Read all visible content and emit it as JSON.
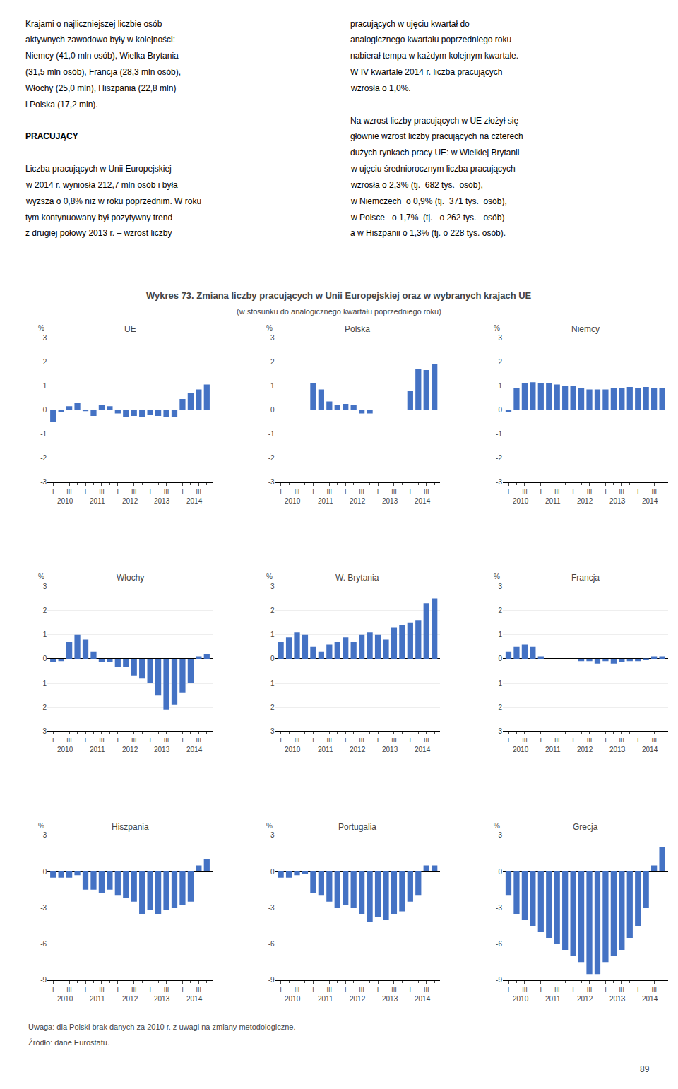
{
  "title": "Wykres 73. Zmiana liczby pracujących w Unii Europejskiej oraz w wybranych krajach UE",
  "subtitle": "(w stosunku do analogicznego kwartału poprzedniego roku)",
  "text_columns": [
    [
      {
        "lines": [
          "Krajami o najliczniejszej liczbie osób",
          "aktywnych zawodowo były w kolejności:",
          "Niemcy (41,0 mln osób), Wielka Brytania",
          "(31,5 mln osób), Francja (28,3 mln osób),",
          "Włochy (25,0 mln), Hiszpania (22,8 mln)",
          "i Polska (17,2 mln)."
        ]
      },
      {
        "heading": "PRACUJĄCY"
      },
      {
        "lines": [
          "Liczba pracujących w Unii Europejskiej",
          "w 2014 r. wyniosła 212,7 mln osób i była",
          "wyższa o 0,8% niż w roku poprzednim. W roku",
          "tym kontynuowany był pozytywny trend",
          "z drugiej połowy 2013 r. – wzrost liczby"
        ]
      }
    ],
    [
      {
        "lines": [
          "pracujących w ujęciu kwartał do",
          "analogicznego kwartału poprzedniego roku",
          "nabierał tempa w każdym kolejnym kwartale.",
          "W IV kwartale 2014 r. liczba pracujących",
          "wzrosła o 1,0%."
        ]
      },
      {
        "lines": [
          "Na wzrost liczby pracujących w UE złożył się",
          "głównie wzrost liczby pracujących na czterech",
          "dużych rynkach pracy UE: w Wielkiej Brytanii",
          "w ujęciu średniorocznym liczba pracujących",
          "wzrosła o 2,3% (tj.  682 tys.  osób),",
          "w Niemczech  o 0,9% (tj.  371 tys.  osób),",
          "w Polsce   o 1,7%  (tj.   o 262 tys.   osób)",
          "a w Hiszpanii o 1,3% (tj. o 228 tys. osób)."
        ]
      }
    ]
  ],
  "note": "Uwaga: dla Polski brak danych za 2010 r. z uwagi na zmiany metodologiczne.",
  "source": "Źródło: dane Eurostatu.",
  "page": "89",
  "chart_data": [
    {
      "type": "bar",
      "title": "UE",
      "ylabel": "%",
      "color": "#4472C4",
      "grid": true,
      "categories": [
        "I",
        null,
        "III",
        null,
        "I",
        null,
        "III",
        null,
        "I",
        null,
        "III",
        null,
        "I",
        null,
        "III",
        null,
        "I",
        null,
        "III",
        null
      ],
      "category_groups": [
        "2010",
        "2011",
        "2012",
        "2013",
        "2014"
      ],
      "values": [
        -0.5,
        -0.1,
        0.15,
        0.3,
        -0.05,
        -0.25,
        0.2,
        0.15,
        -0.15,
        -0.3,
        -0.25,
        -0.3,
        -0.2,
        -0.25,
        -0.3,
        -0.3,
        0.45,
        0.7,
        0.85,
        1.05
      ],
      "ylim": [
        -3,
        3
      ],
      "yticks": [
        -3,
        -2,
        -1,
        0,
        1,
        2,
        3
      ]
    },
    {
      "type": "bar",
      "title": "Polska",
      "ylabel": "%",
      "color": "#4472C4",
      "grid": true,
      "categories": [
        "I",
        null,
        "III",
        null,
        "I",
        null,
        "III",
        null,
        "I",
        null,
        "III",
        null,
        "I",
        null,
        "III",
        null,
        "I",
        null,
        "III",
        null
      ],
      "category_groups": [
        "2010",
        "2011",
        "2012",
        "2013",
        "2014"
      ],
      "values": [
        null,
        null,
        null,
        null,
        1.1,
        0.85,
        0.35,
        0.2,
        0.25,
        0.2,
        -0.15,
        -0.15,
        null,
        null,
        null,
        null,
        0.8,
        1.7,
        1.65,
        1.9
      ],
      "ylim": [
        -3,
        3
      ],
      "yticks": [
        -3,
        -2,
        -1,
        0,
        1,
        2,
        3
      ]
    },
    {
      "type": "bar",
      "title": "Niemcy",
      "ylabel": "%",
      "color": "#4472C4",
      "grid": true,
      "categories": [
        "I",
        null,
        "III",
        null,
        "I",
        null,
        "III",
        null,
        "I",
        null,
        "III",
        null,
        "I",
        null,
        "III",
        null,
        "I",
        null,
        "III",
        null
      ],
      "category_groups": [
        "2010",
        "2011",
        "2012",
        "2013",
        "2014"
      ],
      "values": [
        -0.1,
        0.9,
        1.1,
        1.15,
        1.1,
        1.1,
        1.05,
        1.0,
        1.0,
        0.9,
        0.85,
        0.85,
        0.85,
        0.9,
        0.9,
        0.95,
        0.9,
        0.95,
        0.9,
        0.9
      ],
      "ylim": [
        -3,
        3
      ],
      "yticks": [
        -3,
        -2,
        -1,
        0,
        1,
        2,
        3
      ]
    },
    {
      "type": "bar",
      "title": "Włochy",
      "ylabel": "%",
      "color": "#4472C4",
      "grid": true,
      "categories": [
        "I",
        null,
        "III",
        null,
        "I",
        null,
        "III",
        null,
        "I",
        null,
        "III",
        null,
        "I",
        null,
        "III",
        null,
        "I",
        null,
        "III",
        null
      ],
      "category_groups": [
        "2010",
        "2011",
        "2012",
        "2013",
        "2014"
      ],
      "values": [
        -0.15,
        -0.1,
        0.7,
        1.0,
        0.8,
        0.3,
        -0.15,
        -0.15,
        -0.35,
        -0.35,
        -0.7,
        -0.8,
        -1.0,
        -1.5,
        -2.1,
        -1.9,
        -1.4,
        -1.0,
        0.1,
        0.2
      ],
      "ylim": [
        -3,
        3
      ],
      "yticks": [
        -3,
        -2,
        -1,
        0,
        1,
        2,
        3
      ]
    },
    {
      "type": "bar",
      "title": "W. Brytania",
      "ylabel": "%",
      "color": "#4472C4",
      "grid": true,
      "categories": [
        "I",
        null,
        "III",
        null,
        "I",
        null,
        "III",
        null,
        "I",
        null,
        "III",
        null,
        "I",
        null,
        "III",
        null,
        "I",
        null,
        "III",
        null
      ],
      "category_groups": [
        "2010",
        "2011",
        "2012",
        "2013",
        "2014"
      ],
      "values": [
        0.7,
        0.9,
        1.1,
        1.0,
        0.5,
        0.3,
        0.6,
        0.7,
        0.9,
        0.7,
        1.0,
        1.1,
        1.0,
        0.8,
        1.3,
        1.4,
        1.5,
        1.6,
        2.3,
        2.5
      ],
      "ylim": [
        -3,
        3
      ],
      "yticks": [
        -3,
        -2,
        -1,
        0,
        1,
        2,
        3
      ]
    },
    {
      "type": "bar",
      "title": "Francja",
      "ylabel": "%",
      "color": "#4472C4",
      "grid": true,
      "categories": [
        "I",
        null,
        "III",
        null,
        "I",
        null,
        "III",
        null,
        "I",
        null,
        "III",
        null,
        "I",
        null,
        "III",
        null,
        "I",
        null,
        "III",
        null
      ],
      "category_groups": [
        "2010",
        "2011",
        "2012",
        "2013",
        "2014"
      ],
      "values": [
        0.3,
        0.5,
        0.6,
        0.5,
        0.1,
        0.0,
        0.0,
        0.0,
        0.0,
        -0.1,
        -0.1,
        -0.2,
        -0.1,
        -0.2,
        -0.15,
        -0.1,
        -0.1,
        -0.05,
        0.1,
        0.1
      ],
      "ylim": [
        -3,
        3
      ],
      "yticks": [
        -3,
        -2,
        -1,
        0,
        1,
        2,
        3
      ]
    },
    {
      "type": "bar",
      "title": "Hiszpania",
      "ylabel": "%",
      "color": "#4472C4",
      "grid": true,
      "categories": [
        "I",
        null,
        "III",
        null,
        "I",
        null,
        "III",
        null,
        "I",
        null,
        "III",
        null,
        "I",
        null,
        "III",
        null,
        "I",
        null,
        "III",
        null
      ],
      "category_groups": [
        "2010",
        "2011",
        "2012",
        "2013",
        "2014"
      ],
      "values": [
        -0.5,
        -0.5,
        -0.5,
        -0.3,
        -1.5,
        -1.5,
        -1.8,
        -1.5,
        -2.0,
        -2.2,
        -2.5,
        -3.5,
        -3.2,
        -3.5,
        -3.2,
        -3.0,
        -2.8,
        -2.5,
        0.5,
        1.0
      ],
      "ylim": [
        -9,
        3
      ],
      "yticks": [
        -9,
        -6,
        -3,
        0,
        3
      ]
    },
    {
      "type": "bar",
      "title": "Portugalia",
      "ylabel": "%",
      "color": "#4472C4",
      "grid": true,
      "categories": [
        "I",
        null,
        "III",
        null,
        "I",
        null,
        "III",
        null,
        "I",
        null,
        "III",
        null,
        "I",
        null,
        "III",
        null,
        "I",
        null,
        "III",
        null
      ],
      "category_groups": [
        "2010",
        "2011",
        "2012",
        "2013",
        "2014"
      ],
      "values": [
        -0.5,
        -0.5,
        -0.3,
        -0.2,
        -1.8,
        -2.0,
        -2.5,
        -3.0,
        -2.8,
        -3.0,
        -3.5,
        -4.2,
        -3.8,
        -4.0,
        -3.5,
        -3.3,
        -2.5,
        -2.0,
        0.5,
        0.5
      ],
      "ylim": [
        -9,
        3
      ],
      "yticks": [
        -9,
        -6,
        -3,
        0,
        3
      ]
    },
    {
      "type": "bar",
      "title": "Grecja",
      "ylabel": "%",
      "color": "#4472C4",
      "grid": true,
      "categories": [
        "I",
        null,
        "III",
        null,
        "I",
        null,
        "III",
        null,
        "I",
        null,
        "III",
        null,
        "I",
        null,
        "III",
        null,
        "I",
        null,
        "III",
        null
      ],
      "category_groups": [
        "2010",
        "2011",
        "2012",
        "2013",
        "2014"
      ],
      "values": [
        -2.0,
        -3.5,
        -4.0,
        -4.5,
        -5.0,
        -5.5,
        -6.0,
        -6.5,
        -7.0,
        -7.5,
        -8.5,
        -8.5,
        -7.5,
        -7.0,
        -6.5,
        -5.5,
        -4.5,
        -3.0,
        0.5,
        2.0
      ],
      "ylim": [
        -9,
        3
      ],
      "yticks": [
        -9,
        -6,
        -3,
        0,
        3
      ]
    }
  ]
}
